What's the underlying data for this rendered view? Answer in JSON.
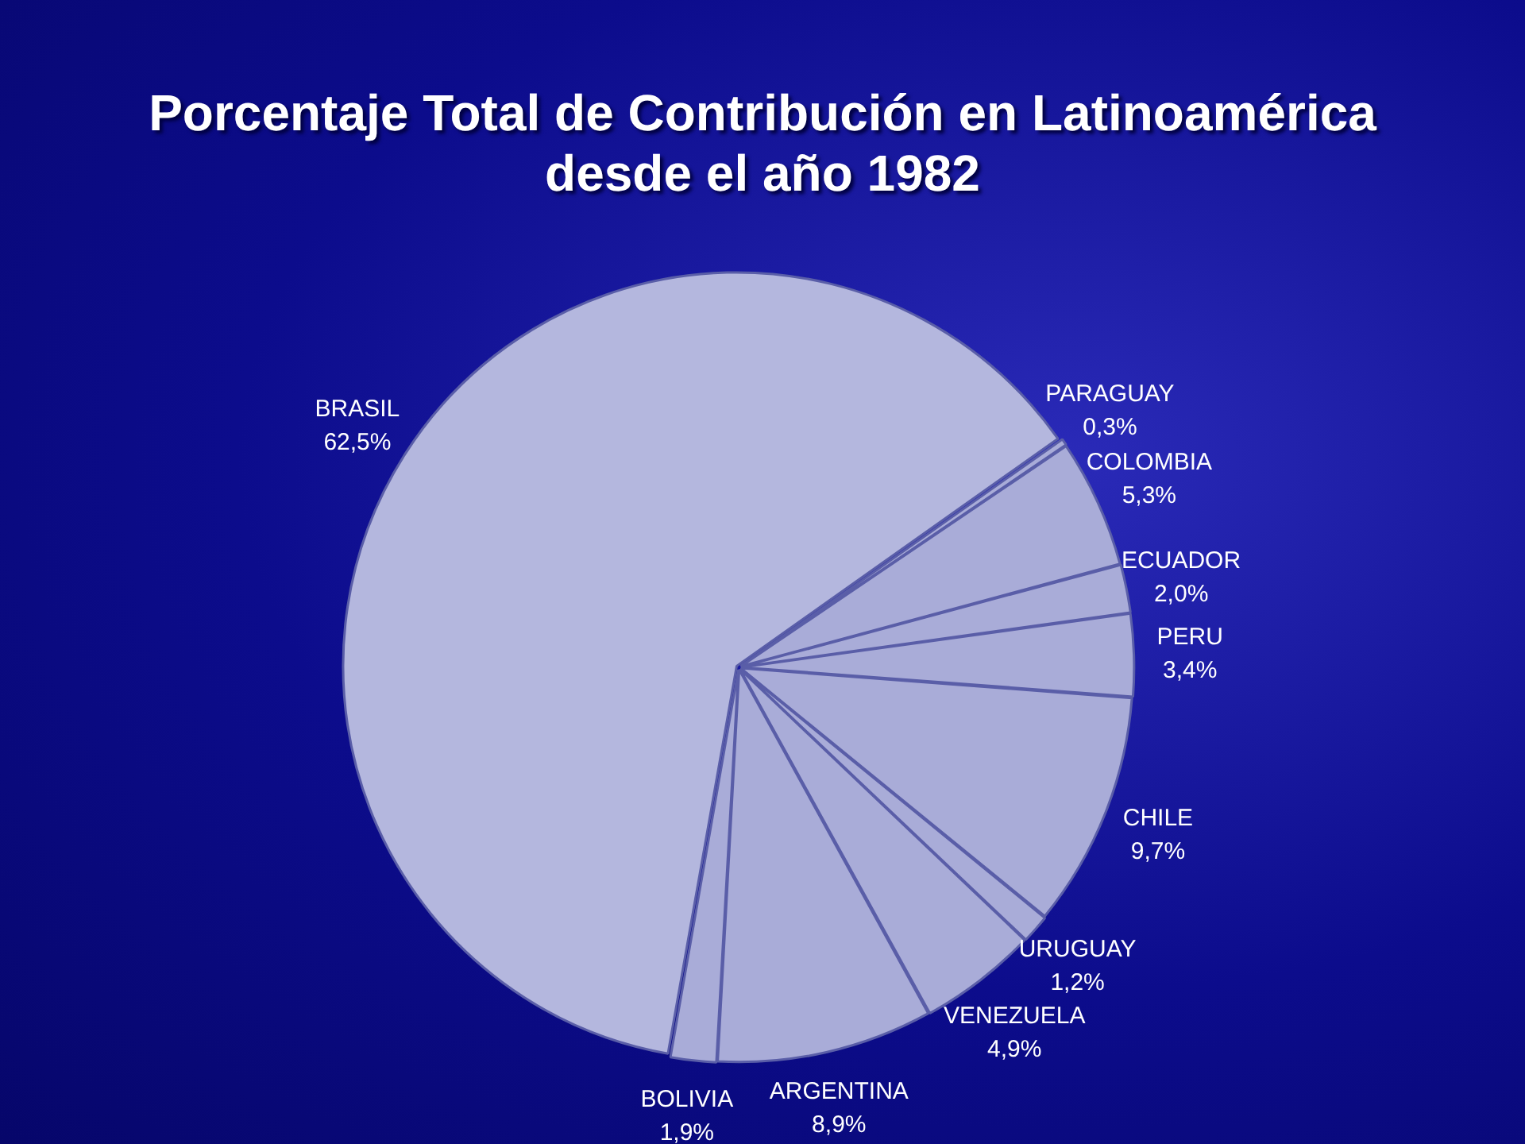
{
  "chart_data": {
    "type": "pie",
    "title": "Porcentaje Total de Contribución en Latinoamérica desde el año 1982",
    "categories": [
      "BRASIL",
      "PARAGUAY",
      "COLOMBIA",
      "ECUADOR",
      "PERU",
      "CHILE",
      "URUGUAY",
      "VENEZUELA",
      "ARGENTINA",
      "BOLIVIA"
    ],
    "values": [
      62.5,
      0.3,
      5.3,
      2.0,
      3.4,
      9.7,
      1.2,
      4.9,
      8.9,
      1.9
    ],
    "value_labels": [
      "62,5%",
      "0,3%",
      "5,3%",
      "2,0%",
      "3,4%",
      "9,7%",
      "1,2%",
      "4,9%",
      "8,9%",
      "1,9%"
    ],
    "colors": [
      "#b4b7de",
      "#a9acd8",
      "#a9acd8",
      "#a9acd8",
      "#a9acd8",
      "#a9acd8",
      "#a9acd8",
      "#a9acd8",
      "#a9acd8",
      "#a9acd8"
    ],
    "legend": false
  }
}
